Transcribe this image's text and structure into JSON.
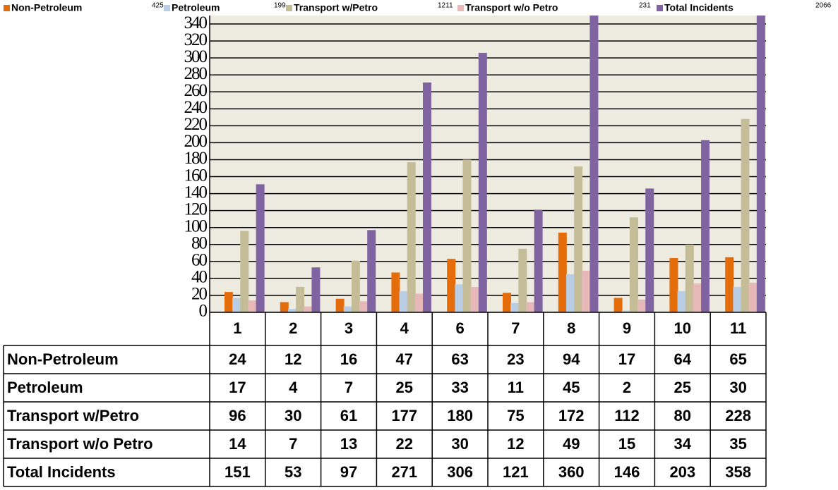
{
  "chart_data": {
    "type": "bar",
    "categories": [
      "1",
      "2",
      "3",
      "4",
      "6",
      "7",
      "8",
      "9",
      "10",
      "11"
    ],
    "series": [
      {
        "name": "Non-Petroleum",
        "legend_value": 425,
        "color": "#e46c0a",
        "values": [
          24,
          12,
          16,
          47,
          63,
          23,
          94,
          17,
          64,
          65
        ]
      },
      {
        "name": "Petroleum",
        "legend_value": 199,
        "color": "#b9cde5",
        "values": [
          17,
          4,
          7,
          25,
          33,
          11,
          45,
          2,
          25,
          30
        ]
      },
      {
        "name": "Transport w/Petro",
        "legend_value": 1211,
        "color": "#c4bd97",
        "values": [
          96,
          30,
          61,
          177,
          180,
          75,
          172,
          112,
          80,
          228
        ]
      },
      {
        "name": "Transport w/o Petro",
        "legend_value": 231,
        "color": "#e6b9b8",
        "values": [
          14,
          7,
          13,
          22,
          30,
          12,
          49,
          15,
          34,
          35
        ]
      },
      {
        "name": "Total Incidents",
        "legend_value": 2066,
        "color": "#8064a2",
        "values": [
          151,
          53,
          97,
          271,
          306,
          121,
          360,
          146,
          203,
          358
        ]
      }
    ],
    "ylim": [
      0,
      350
    ],
    "yticks": [
      0,
      20,
      40,
      60,
      80,
      100,
      120,
      140,
      160,
      180,
      200,
      220,
      240,
      260,
      280,
      300,
      320,
      340
    ],
    "grid": true,
    "legend": "top",
    "background": "#eeece1"
  }
}
